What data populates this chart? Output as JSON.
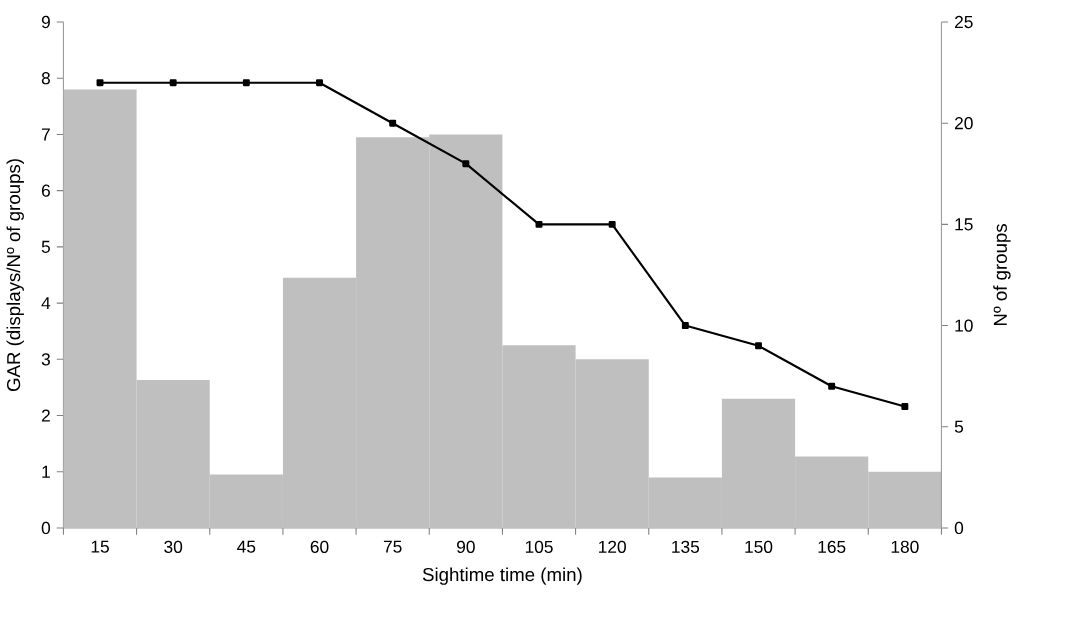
{
  "chart_data": {
    "type": "bar",
    "xlabel": "Sightime time (min)",
    "ylabel": "GAR (displays/Nº of groups)",
    "y2label": "Nº of groups",
    "categories": [
      "15",
      "30",
      "45",
      "60",
      "75",
      "90",
      "105",
      "120",
      "135",
      "150",
      "165",
      "180"
    ],
    "series": [
      {
        "color": "#bfbfbf",
        "values": [
          7.8,
          2.63,
          0.95,
          4.45,
          6.95,
          7.0,
          3.25,
          3.0,
          0.9,
          2.3,
          1.27,
          1.0
        ]
      },
      {
        "type": "line",
        "axis": "y2",
        "color": "#000000",
        "marker": "square",
        "line_style": "solid",
        "values": [
          22,
          22,
          22,
          22,
          20,
          18,
          15,
          15,
          10,
          9,
          7,
          6
        ]
      }
    ],
    "ylim": [
      0,
      9
    ],
    "yticks": [
      0,
      1,
      2,
      3,
      4,
      5,
      6,
      7,
      8,
      9
    ],
    "y2lim": [
      0,
      25
    ],
    "y2ticks": [
      0,
      5,
      10,
      15,
      20,
      25
    ]
  }
}
